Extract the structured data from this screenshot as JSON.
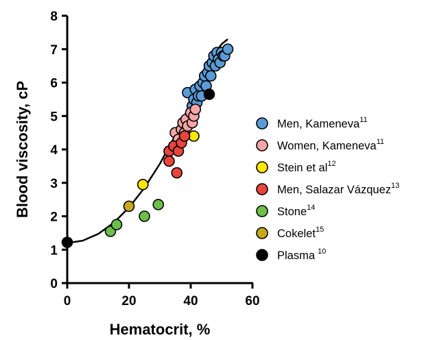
{
  "chart_data": {
    "type": "scatter",
    "title": "",
    "xlabel": "Hematocrit, %",
    "ylabel": "Blood viscosity, cP",
    "xlim": [
      0,
      60
    ],
    "ylim": [
      0,
      8
    ],
    "xticks": [
      "0",
      "20",
      "40",
      "60"
    ],
    "yticks": [
      "0",
      "1",
      "2",
      "3",
      "4",
      "5",
      "6",
      "7",
      "8"
    ],
    "grid": false,
    "legend_position": "right",
    "fit_curve": {
      "x": [
        0,
        5,
        10,
        15,
        20,
        25,
        30,
        35,
        40,
        45,
        50,
        52
      ],
      "y": [
        1.2,
        1.27,
        1.47,
        1.8,
        2.26,
        2.85,
        3.57,
        4.42,
        5.4,
        6.51,
        7.15,
        7.3
      ]
    },
    "series": [
      {
        "name": "Men, Kameneva",
        "ref": "11",
        "color": "#5b9bd5",
        "points": [
          [
            39,
            5.7
          ],
          [
            40,
            5.0
          ],
          [
            40.5,
            5.3
          ],
          [
            41,
            5.5
          ],
          [
            41.5,
            5.8
          ],
          [
            42,
            5.4
          ],
          [
            42.5,
            5.6
          ],
          [
            43,
            5.9
          ],
          [
            43.5,
            5.6
          ],
          [
            44,
            6.0
          ],
          [
            44.5,
            6.2
          ],
          [
            45,
            5.9
          ],
          [
            45.5,
            6.3
          ],
          [
            46,
            6.5
          ],
          [
            46.5,
            6.2
          ],
          [
            47,
            6.6
          ],
          [
            47.5,
            6.8
          ],
          [
            48,
            6.5
          ],
          [
            48.5,
            6.9
          ],
          [
            49,
            6.7
          ],
          [
            49.5,
            6.6
          ],
          [
            50,
            6.9
          ],
          [
            50.5,
            6.8
          ],
          [
            51,
            6.8
          ],
          [
            52,
            7.0
          ]
        ]
      },
      {
        "name": "Women, Kameneva",
        "ref": "11",
        "color": "#f4a6a6",
        "points": [
          [
            35,
            4.5
          ],
          [
            36,
            4.3
          ],
          [
            37,
            4.6
          ],
          [
            37.5,
            4.8
          ],
          [
            38,
            4.5
          ],
          [
            38.5,
            4.9
          ],
          [
            39,
            4.7
          ],
          [
            40,
            5.1
          ],
          [
            40.5,
            4.8
          ],
          [
            41,
            5.0
          ],
          [
            41.5,
            5.2
          ]
        ]
      },
      {
        "name": "Stein et al",
        "ref": "12",
        "color": "#ffe600",
        "points": [
          [
            24.5,
            2.95
          ],
          [
            41,
            4.4
          ]
        ]
      },
      {
        "name": "Men, Salazar Vázquez",
        "ref": "13",
        "color": "#e8453c",
        "points": [
          [
            33,
            3.95
          ],
          [
            33,
            3.65
          ],
          [
            34.5,
            4.1
          ],
          [
            35.5,
            3.3
          ],
          [
            36,
            3.95
          ],
          [
            37,
            4.2
          ],
          [
            38,
            4.4
          ]
        ]
      },
      {
        "name": "Stone",
        "ref": "14",
        "color": "#6cc04a",
        "points": [
          [
            14,
            1.55
          ],
          [
            16,
            1.75
          ],
          [
            25,
            2.0
          ],
          [
            29.5,
            2.35
          ]
        ]
      },
      {
        "name": "Cokelet",
        "ref": "15",
        "color": "#c8a820",
        "points": [
          [
            20,
            2.3
          ]
        ]
      },
      {
        "name": "Plasma",
        "ref": "10",
        "color": "#000000",
        "points": [
          [
            0,
            1.22
          ],
          [
            46,
            5.65
          ]
        ]
      }
    ]
  }
}
